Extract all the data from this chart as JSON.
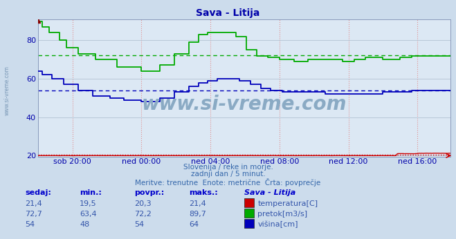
{
  "title": "Sava - Litija",
  "bg_color": "#ccdcec",
  "plot_bg_color": "#dce8f4",
  "grid_color_h": "#b8c8d8",
  "grid_color_v": "#e8b0b0",
  "xlabel_color": "#0000aa",
  "ylim": [
    19.5,
    91
  ],
  "xlim": [
    0,
    287
  ],
  "xtick_positions": [
    24,
    72,
    120,
    168,
    216,
    264
  ],
  "xtick_labels": [
    "sob 20:00",
    "ned 00:00",
    "ned 04:00",
    "ned 08:00",
    "ned 12:00",
    "ned 16:00"
  ],
  "ytick_positions": [
    20,
    40,
    60,
    80
  ],
  "ytick_labels": [
    "20",
    "40",
    "60",
    "80"
  ],
  "avg_red": 20.3,
  "avg_green": 72.2,
  "avg_blue": 54.0,
  "subtitle1": "Slovenija / reke in morje.",
  "subtitle2": "zadnji dan / 5 minut.",
  "subtitle3": "Meritve: trenutne  Enote: metrične  Črta: povprečje",
  "table_headers": [
    "sedaj:",
    "min.:",
    "povpr.:",
    "maks.:",
    "Sava - Litija"
  ],
  "table_data": [
    [
      "21,4",
      "19,5",
      "20,3",
      "21,4"
    ],
    [
      "72,7",
      "63,4",
      "72,2",
      "89,7"
    ],
    [
      "54",
      "48",
      "54",
      "64"
    ]
  ],
  "table_labels": [
    "temperatura[C]",
    "pretok[m3/s]",
    "višina[cm]"
  ],
  "line_red_color": "#cc0000",
  "line_green_color": "#00aa00",
  "line_blue_color": "#0000bb",
  "watermark": "www.si-vreme.com",
  "watermark_color": "#8aaac4",
  "side_watermark_color": "#7090b0"
}
